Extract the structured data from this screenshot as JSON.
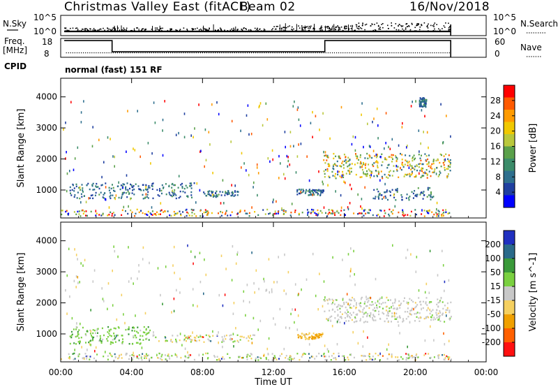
{
  "chart_data": [
    {
      "type": "line",
      "title": "Christmas Valley East (fitACF)",
      "beam_label": "Beam 02",
      "date": "16/Nov/2018",
      "left_label": "N.Sky",
      "right_label": "N.Search",
      "left_ticks": [
        "10^5",
        "10^0"
      ],
      "right_ticks": [
        "10^5",
        "10^0"
      ],
      "series": [
        {
          "name": "N.Sky",
          "x_hours": [
            0.2,
            22.0
          ],
          "values": [
            1,
            2
          ]
        },
        {
          "name": "N.Search",
          "x_hours": [
            0.2,
            22.0
          ],
          "values": [
            1,
            100
          ]
        }
      ]
    },
    {
      "type": "line",
      "left_label_top": "Freq.",
      "left_label_bottom": "[MHz]",
      "right_label": "Nave",
      "left_ticks": [
        "18",
        "8"
      ],
      "right_ticks": [
        "60",
        "0"
      ],
      "cpid_label": "CPID",
      "mode_text": "normal (fast) 151 RF",
      "series": [
        {
          "name": "Freq.",
          "x_hours": [
            0.2,
            2.9,
            2.9,
            14.9,
            14.9,
            22.0
          ],
          "values": [
            17.6,
            17.6,
            10.5,
            10.5,
            17.6,
            17.6
          ]
        },
        {
          "name": "Nave",
          "x_hours": [
            0.2,
            22.0
          ],
          "values": [
            8,
            8
          ]
        }
      ]
    },
    {
      "type": "heatmap",
      "ylabel": "Slant Range [km]",
      "xlabel": "Time UT",
      "xticks": [
        "00:00",
        "04:00",
        "08:00",
        "12:00",
        "16:00",
        "20:00",
        "00:00"
      ],
      "yticks": [
        "1000",
        "2000",
        "3000",
        "4000"
      ],
      "colorbar_label": "Power [dB]",
      "colorbar_ticks": [
        "4",
        "8",
        "12",
        "16",
        "20",
        "24",
        "28"
      ],
      "colors": [
        "#0000ff",
        "#1f3fa0",
        "#2e6f8e",
        "#3c8c6a",
        "#5aa04a",
        "#b9c83c",
        "#f0c800",
        "#ff9b00",
        "#ff5a00",
        "#ff0000"
      ],
      "scatter_regions": [
        {
          "x": [
            0.5,
            7.5
          ],
          "y": [
            750,
            1250
          ],
          "level": "low"
        },
        {
          "x": [
            8.0,
            10.0
          ],
          "y": [
            800,
            1000
          ],
          "level": "low"
        },
        {
          "x": [
            13.3,
            14.8
          ],
          "y": [
            850,
            1050
          ],
          "level": "low"
        },
        {
          "x": [
            14.8,
            22.0
          ],
          "y": [
            1400,
            2200
          ],
          "level": "medium-high"
        },
        {
          "x": [
            17.5,
            21.0
          ],
          "y": [
            700,
            1100
          ],
          "level": "low"
        },
        {
          "x": [
            20.2,
            20.6
          ],
          "y": [
            3700,
            4000
          ],
          "level": "low"
        },
        {
          "x": [
            0.0,
            22.0
          ],
          "y": [
            180,
            400
          ],
          "level": "mixed"
        }
      ]
    },
    {
      "type": "heatmap",
      "ylabel": "Slant Range [km]",
      "xlabel": "Time UT",
      "xticks": [
        "00:00",
        "04:00",
        "08:00",
        "12:00",
        "16:00",
        "20:00",
        "00:00"
      ],
      "yticks": [
        "1000",
        "2000",
        "3000",
        "4000"
      ],
      "colorbar_label": "Velocity [m s^-1]",
      "colorbar_ticks": [
        "200",
        "100",
        "50",
        "15",
        "-15",
        "-50",
        "-100",
        "-200"
      ],
      "colors": [
        "#2030c0",
        "#2a6a8a",
        "#3a9a3a",
        "#7ad040",
        "#c8c8c8",
        "#f5d060",
        "#f0a000",
        "#ff6000",
        "#ff1010"
      ],
      "scatter_regions": [
        {
          "x": [
            0.5,
            5.0
          ],
          "y": [
            700,
            1250
          ],
          "level": "positive ~50"
        },
        {
          "x": [
            5.0,
            11.0
          ],
          "y": [
            750,
            1000
          ],
          "level": "mixed"
        },
        {
          "x": [
            13.3,
            14.8
          ],
          "y": [
            850,
            1050
          ],
          "level": "negative ~-50"
        },
        {
          "x": [
            14.8,
            22.0
          ],
          "y": [
            1400,
            2200
          ],
          "level": "near zero"
        },
        {
          "x": [
            0.0,
            22.0
          ],
          "y": [
            180,
            400
          ],
          "level": "mixed"
        }
      ]
    }
  ]
}
